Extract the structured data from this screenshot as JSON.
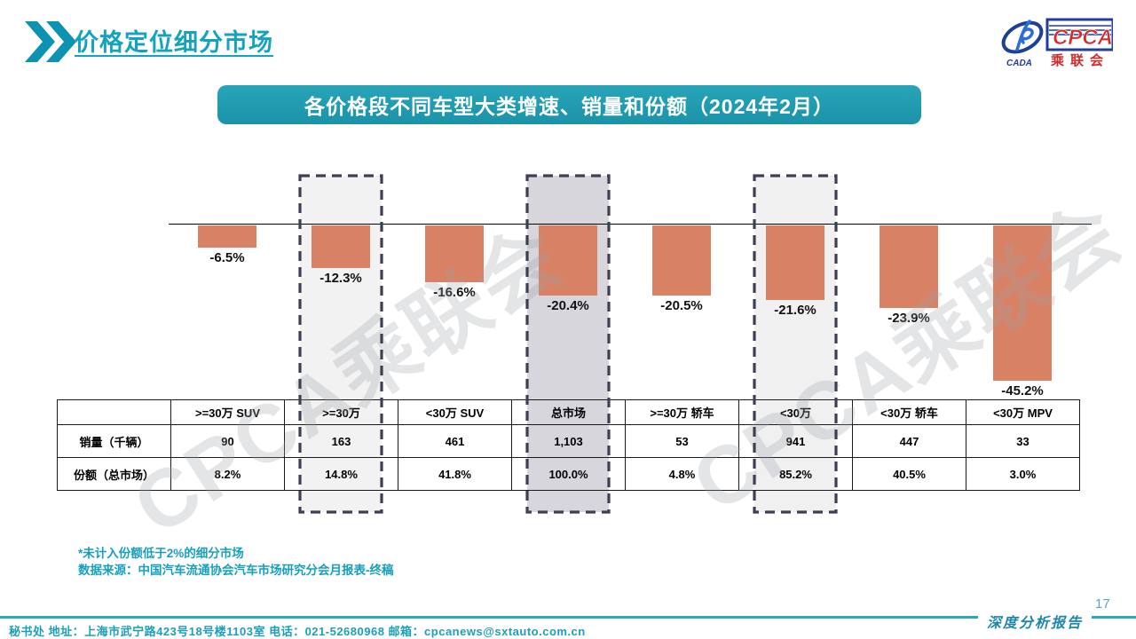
{
  "page": {
    "title": "价格定位细分市场",
    "banner": "各价格段不同车型大类增速、销量和份额（2024年2月）",
    "notes": {
      "line1": "*未计入份额低于2%的细分市场",
      "line2": "数据来源：中国汽车流通协会汽车市场研究分会月报表-终稿"
    },
    "footer_contact": "秘书处  地址：上海市武宁路423号18号楼1103室  电话：021-52680968   邮箱：cpcanews@sxtauto.com.cn",
    "report_label": "深度分析报告",
    "page_number": "17",
    "watermark_text": "CPCA乘联会",
    "logo": {
      "cpca": "CPCA",
      "cada": "CADA",
      "cn": "乘联会"
    }
  },
  "colors": {
    "accent_teal": "#14A3BE",
    "banner_teal": "#1E97AC",
    "bar_fill": "#D98164",
    "dash_border": "#3E4052",
    "logo_blue": "#1F3E9A",
    "logo_red": "#D42B2B"
  },
  "chart_data": {
    "type": "bar",
    "title": "各价格段不同车型大类增速、销量和份额（2024年2月）",
    "categories": [
      ">=30万 SUV",
      ">=30万",
      "<30万 SUV",
      "总市场",
      ">=30万 轿车",
      "<30万",
      "<30万 轿车",
      "<30万 MPV"
    ],
    "series": [
      {
        "name": "增速",
        "unit": "%",
        "values": [
          -6.5,
          -12.3,
          -16.6,
          -20.4,
          -20.5,
          -21.6,
          -23.9,
          -45.2
        ]
      },
      {
        "name": "销量（千辆）",
        "values": [
          90,
          163,
          461,
          1103,
          53,
          941,
          447,
          33
        ]
      },
      {
        "name": "份额（总市场）",
        "unit": "%",
        "values": [
          8.2,
          14.8,
          41.8,
          100.0,
          4.8,
          85.2,
          40.5,
          3.0
        ]
      }
    ],
    "bar_color": "#D98164",
    "ylim": [
      -50,
      5
    ],
    "grid": false,
    "legend": "none",
    "highlights": [
      {
        "category": ">=30万",
        "fill": "#F2F2F2"
      },
      {
        "category": "总市场",
        "fill": "#D6D6DC"
      },
      {
        "category": "<30万",
        "fill": "#F0F0F1"
      }
    ]
  },
  "table": {
    "row_labels": {
      "sales": "销量（千辆）",
      "share": "份额（总市场）"
    },
    "columns": [
      ">=30万 SUV",
      ">=30万",
      "<30万 SUV",
      "总市场",
      ">=30万 轿车",
      "<30万",
      "<30万 轿车",
      "<30万 MPV"
    ],
    "sales": [
      "90",
      "163",
      "461",
      "1,103",
      "53",
      "941",
      "447",
      "33"
    ],
    "share": [
      "8.2%",
      "14.8%",
      "41.8%",
      "100.0%",
      "4.8%",
      "85.2%",
      "40.5%",
      "3.0%"
    ]
  }
}
